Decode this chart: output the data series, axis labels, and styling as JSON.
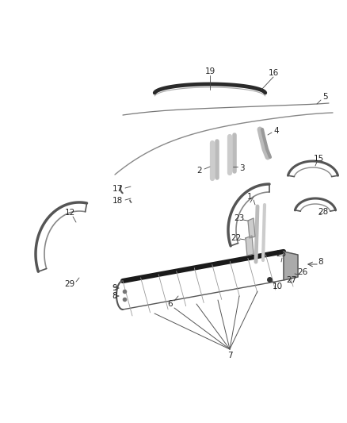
{
  "background_color": "#ffffff",
  "figsize": [
    4.38,
    5.33
  ],
  "dpi": 100,
  "line_color": "#444444",
  "label_fontsize": 7.5,
  "label_color": "#222222"
}
